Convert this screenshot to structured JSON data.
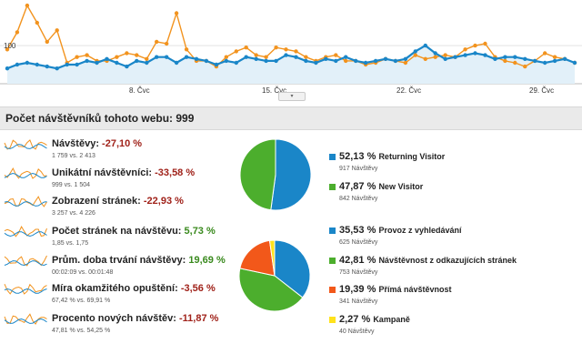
{
  "colors": {
    "blue": "#1a86c8",
    "orange": "#f2931e",
    "green": "#4cae2d",
    "red": "#f2581a",
    "yellow": "#ffe21c",
    "neg": "#a0221a",
    "pos": "#3a8a1e"
  },
  "top_chart": {
    "y_tick_label": "100",
    "x_ticks": [
      "8. Čvc",
      "15. Čvc",
      "22. Čvc",
      "29. Čvc"
    ],
    "chart_data": {
      "type": "line",
      "ylim": [
        0,
        210
      ],
      "series": [
        {
          "color": "orange",
          "values": [
            90,
            135,
            205,
            160,
            110,
            140,
            55,
            70,
            75,
            60,
            60,
            70,
            80,
            75,
            65,
            110,
            105,
            185,
            90,
            60,
            60,
            45,
            70,
            85,
            95,
            75,
            70,
            95,
            90,
            85,
            70,
            60,
            70,
            75,
            60,
            60,
            50,
            55,
            65,
            60,
            55,
            75,
            65,
            70,
            75,
            70,
            90,
            100,
            105,
            70,
            60,
            55,
            45,
            60,
            80,
            70,
            65,
            55
          ]
        },
        {
          "color": "blue",
          "values": [
            40,
            50,
            55,
            50,
            45,
            40,
            50,
            50,
            60,
            55,
            65,
            55,
            45,
            60,
            55,
            70,
            70,
            55,
            70,
            65,
            60,
            50,
            60,
            55,
            70,
            65,
            60,
            60,
            75,
            70,
            60,
            55,
            65,
            60,
            70,
            60,
            55,
            60,
            65,
            60,
            65,
            85,
            100,
            80,
            65,
            70,
            75,
            80,
            75,
            65,
            70,
            70,
            65,
            60,
            55,
            60,
            65,
            55
          ]
        }
      ]
    }
  },
  "summary_title": "Počet návštěvníků tohoto webu: 999",
  "metrics": [
    {
      "label": "Návštěvy:",
      "change": "-27,10 %",
      "sign": "neg",
      "sub": "1 759 vs. 2 413"
    },
    {
      "label": "Unikátní návštěvníci:",
      "change": "-33,58 %",
      "sign": "neg",
      "sub": "999 vs. 1 504"
    },
    {
      "label": "Zobrazení stránek:",
      "change": "-22,93 %",
      "sign": "neg",
      "sub": "3 257 vs. 4 226"
    },
    {
      "label": "Počet stránek na návštěvu:",
      "change": "5,73 %",
      "sign": "pos",
      "sub": "1,85 vs. 1,75"
    },
    {
      "label": "Prům. doba trvání návštěvy:",
      "change": "19,69 %",
      "sign": "pos",
      "sub": "00:02:09 vs. 00:01:48"
    },
    {
      "label": "Míra okamžitého opuštění:",
      "change": "-3,56 %",
      "sign": "neg",
      "sub": "67,42 % vs. 69,91 %"
    },
    {
      "label": "Procento nových návštěv:",
      "change": "-11,87 %",
      "sign": "neg",
      "sub": "47,81 % vs. 54,25 %"
    }
  ],
  "visitor_legend": [
    {
      "pct": "52,13 %",
      "name": "Returning Visitor",
      "sub": "917 Návštěvy",
      "color": "blue"
    },
    {
      "pct": "47,87 %",
      "name": "New Visitor",
      "sub": "842 Návštěvy",
      "color": "green"
    }
  ],
  "source_legend": [
    {
      "pct": "35,53 %",
      "name": "Provoz z vyhledávání",
      "sub": "625 Návštěvy",
      "color": "blue"
    },
    {
      "pct": "42,81 %",
      "name": "Návštěvnost z odkazujících stránek",
      "sub": "753 Návštěvy",
      "color": "green"
    },
    {
      "pct": "19,39 %",
      "name": "Přímá návštěvnost",
      "sub": "341 Návštěvy",
      "color": "red"
    },
    {
      "pct": "2,27 %",
      "name": "Kampaně",
      "sub": "40 Návštěvy",
      "color": "yellow"
    }
  ],
  "chart_data": [
    {
      "type": "pie",
      "labels": [
        "Returning Visitor",
        "New Visitor"
      ],
      "values": [
        52.13,
        47.87
      ],
      "colors": [
        "blue",
        "green"
      ]
    },
    {
      "type": "pie",
      "labels": [
        "Provoz z vyhledávání",
        "Návštěvnost z odkazujících stránek",
        "Přímá návštěvnost",
        "Kampaně"
      ],
      "values": [
        35.53,
        42.81,
        19.39,
        2.27
      ],
      "colors": [
        "blue",
        "green",
        "red",
        "yellow"
      ]
    }
  ]
}
